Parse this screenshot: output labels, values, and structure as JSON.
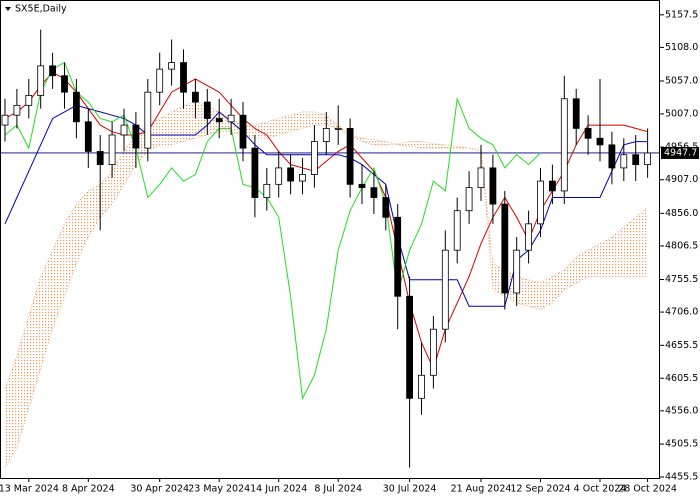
{
  "chart_data": {
    "type": "candlestick",
    "title": "SX5E,Daily",
    "categories": [
      null,
      null,
      "13 Mar 2024",
      null,
      null,
      null,
      null,
      "8 Apr 2024",
      null,
      null,
      null,
      null,
      null,
      "30 Apr 2024",
      null,
      null,
      null,
      null,
      "23 May 2024",
      null,
      null,
      null,
      null,
      "14 Jun 2024",
      null,
      null,
      null,
      null,
      "8 Jul 2024",
      null,
      null,
      null,
      null,
      null,
      "30 Jul 2024",
      null,
      null,
      null,
      null,
      null,
      "21 Aug 2024",
      null,
      null,
      null,
      null,
      "12 Sep 2024",
      null,
      null,
      null,
      null,
      "4 Oct 2024",
      null,
      null,
      null,
      "28 Oct 2024"
    ],
    "open": [
      4990,
      5005,
      5020,
      5035,
      5080,
      5065,
      5040,
      4995,
      4950,
      4930,
      4975,
      4990,
      4955,
      5040,
      5075,
      5085,
      5040,
      5025,
      5000,
      4995,
      5005,
      4955,
      4880,
      4900,
      4925,
      4905,
      4915,
      4965,
      4985,
      4985,
      4900,
      4895,
      4880,
      4850,
      4730,
      4575,
      4610,
      4680,
      4800,
      4860,
      4895,
      4925,
      4870,
      4735,
      4800,
      4840,
      4905,
      4890,
      5030,
      4985,
      4970,
      4960,
      4925,
      4945,
      4930
    ],
    "high": [
      5030,
      5045,
      5060,
      5135,
      5100,
      5085,
      5060,
      5015,
      4975,
      4995,
      5015,
      5010,
      5060,
      5100,
      5120,
      5105,
      5060,
      5045,
      5030,
      5030,
      5025,
      4975,
      4925,
      4950,
      4945,
      4940,
      4990,
      5010,
      5020,
      5000,
      4930,
      4920,
      4900,
      4870,
      4760,
      4660,
      4700,
      4830,
      4880,
      4920,
      4960,
      4945,
      4890,
      4820,
      4860,
      4925,
      4930,
      5065,
      5045,
      5005,
      5060,
      4980,
      4970,
      4975,
      4985
    ],
    "low": [
      4965,
      4985,
      5000,
      5015,
      5045,
      5015,
      4970,
      4925,
      4830,
      4910,
      4950,
      4925,
      4935,
      5020,
      5050,
      5015,
      5000,
      4975,
      4970,
      4975,
      4935,
      4850,
      4860,
      4880,
      4885,
      4885,
      4895,
      4945,
      4960,
      4880,
      4870,
      4855,
      4830,
      4680,
      4470,
      4550,
      4590,
      4660,
      4780,
      4840,
      4875,
      4840,
      4710,
      4715,
      4780,
      4820,
      4870,
      4870,
      4960,
      4945,
      4935,
      4900,
      4905,
      4905,
      4910
    ],
    "close": [
      5005,
      5020,
      5035,
      5080,
      5065,
      5040,
      4995,
      4950,
      4930,
      4975,
      4990,
      4955,
      5040,
      5075,
      5085,
      5040,
      5025,
      5000,
      4995,
      5005,
      4955,
      4880,
      4900,
      4925,
      4905,
      4915,
      4965,
      4985,
      4985,
      4900,
      4895,
      4880,
      4850,
      4730,
      4575,
      4610,
      4680,
      4800,
      4860,
      4895,
      4925,
      4870,
      4735,
      4800,
      4840,
      4905,
      4890,
      5030,
      4985,
      4970,
      4960,
      4925,
      4945,
      4930,
      4947.7
    ],
    "series": [
      {
        "color": "#d40000",
        "values": [
          5000,
          5010,
          5025,
          5050,
          5070,
          5060,
          5040,
          5015,
          4990,
          4980,
          4975,
          4975,
          4980,
          5010,
          5040,
          5050,
          5060,
          5050,
          5040,
          5020,
          5000,
          4985,
          4975,
          4950,
          4930,
          4925,
          4920,
          4935,
          4950,
          4960,
          4940,
          4920,
          4880,
          4800,
          4720,
          4660,
          4620,
          4680,
          4720,
          4760,
          4810,
          4850,
          4880,
          4850,
          4815,
          4860,
          4890,
          4920,
          4960,
          4990,
          4990,
          4990,
          4990,
          4985,
          4980
        ]
      },
      {
        "color": "#0000b4",
        "values": [
          4840,
          4880,
          4920,
          4960,
          5000,
          5010,
          5020,
          5015,
          5010,
          5005,
          5000,
          4990,
          4975,
          4975,
          4975,
          4975,
          4975,
          4990,
          5010,
          4995,
          4980,
          4960,
          4945,
          4945,
          4945,
          4945,
          4945,
          4945,
          4945,
          4940,
          4930,
          4915,
          4900,
          4820,
          4755,
          4755,
          4755,
          4755,
          4755,
          4715,
          4715,
          4715,
          4715,
          4785,
          4800,
          4830,
          4880,
          4880,
          4880,
          4880,
          4880,
          4920,
          4960,
          4965,
          4965
        ]
      },
      {
        "color": "#22dd22",
        "values": [
          4975,
          4990,
          4955,
          5040,
          5075,
          5085,
          5040,
          5025,
          5000,
          4995,
          5005,
          4955,
          4880,
          4900,
          4925,
          4905,
          4915,
          4965,
          4985,
          4985,
          4900,
          4895,
          4880,
          4850,
          4730,
          4575,
          4610,
          4680,
          4800,
          4860,
          4895,
          4925,
          4870,
          4735,
          4800,
          4840,
          4905,
          4890,
          5030,
          4985,
          4970,
          4960,
          4925,
          4945,
          4930,
          4947.7,
          null,
          null,
          null,
          null,
          null,
          null,
          null,
          null,
          null
        ]
      }
    ],
    "cloud": {
      "color": "#e9965a",
      "span_a": [
        4590,
        4640,
        4700,
        4760,
        4800,
        4840,
        4870,
        4890,
        4900,
        4920,
        4950,
        4975,
        4990,
        5000,
        5010,
        5020,
        5025,
        5020,
        5010,
        5000,
        4990,
        4990,
        4995,
        5000,
        5005,
        5010,
        5010,
        5005,
        4990,
        4975,
        4965,
        4960,
        4960,
        4962,
        4965,
        4965,
        4962,
        4960,
        4958,
        4955,
        4950,
        4780,
        4770,
        4760,
        4755,
        4750,
        4760,
        4770,
        4790,
        4800,
        4810,
        4820,
        4835,
        4850,
        4865
      ],
      "span_b": [
        4470,
        4500,
        4560,
        4620,
        4680,
        4730,
        4780,
        4820,
        4850,
        4870,
        4900,
        4930,
        4950,
        4960,
        4960,
        4965,
        4970,
        4975,
        4980,
        4980,
        4975,
        4970,
        4970,
        4975,
        4980,
        4985,
        4990,
        4990,
        4985,
        4975,
        4970,
        4968,
        4965,
        4960,
        4958,
        4955,
        4955,
        4955,
        4955,
        4955,
        4955,
        4740,
        4730,
        4720,
        4715,
        4710,
        4720,
        4740,
        4750,
        4760,
        4760,
        4760,
        4760,
        4760,
        4760
      ]
    },
    "last_price": 4947.7,
    "ylim": [
      4454,
      5180
    ],
    "yticks": [
      5157.5,
      {
        "value": 5108,
        "label": "5108.0"
      },
      {
        "value": 5057,
        "label": "5057.0"
      },
      {
        "value": 5007,
        "label": "5007.0"
      },
      4956.5,
      {
        "value": 4907,
        "label": "4907.0"
      },
      {
        "value": 4856,
        "label": "4856.0"
      },
      4806.5,
      4755.5,
      {
        "value": 4706,
        "label": "4706.0"
      },
      4655.5,
      4605.5,
      {
        "value": 4556,
        "label": "4556.0"
      },
      4505.5,
      4455.5
    ]
  }
}
